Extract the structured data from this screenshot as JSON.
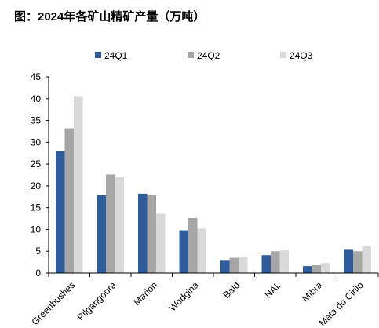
{
  "title": "图：2024年各矿山精矿产量（万吨）",
  "chart_data": {
    "type": "bar",
    "categories": [
      "Greenbushes",
      "Pilgangoora",
      "Marion",
      "Wodgina",
      "Bald",
      "NAL",
      "Mibra",
      "Mata do Cirilo"
    ],
    "series": [
      {
        "name": "24Q1",
        "color": "#2f5c9a",
        "values": [
          28.0,
          17.9,
          18.2,
          9.8,
          3.0,
          4.1,
          1.6,
          5.5
        ]
      },
      {
        "name": "24Q2",
        "color": "#a6a6a6",
        "values": [
          33.2,
          22.6,
          17.9,
          12.6,
          3.5,
          5.0,
          1.8,
          5.0
        ]
      },
      {
        "name": "24Q3",
        "color": "#d9d9d9",
        "values": [
          40.6,
          22.0,
          13.6,
          10.2,
          3.8,
          5.2,
          2.3,
          6.1
        ]
      }
    ],
    "ylim": [
      0,
      45
    ],
    "yticks": [
      0,
      5,
      10,
      15,
      20,
      25,
      30,
      35,
      40,
      45
    ],
    "xlabel": "",
    "ylabel": "",
    "legend_position": "top-center",
    "grid": false
  }
}
